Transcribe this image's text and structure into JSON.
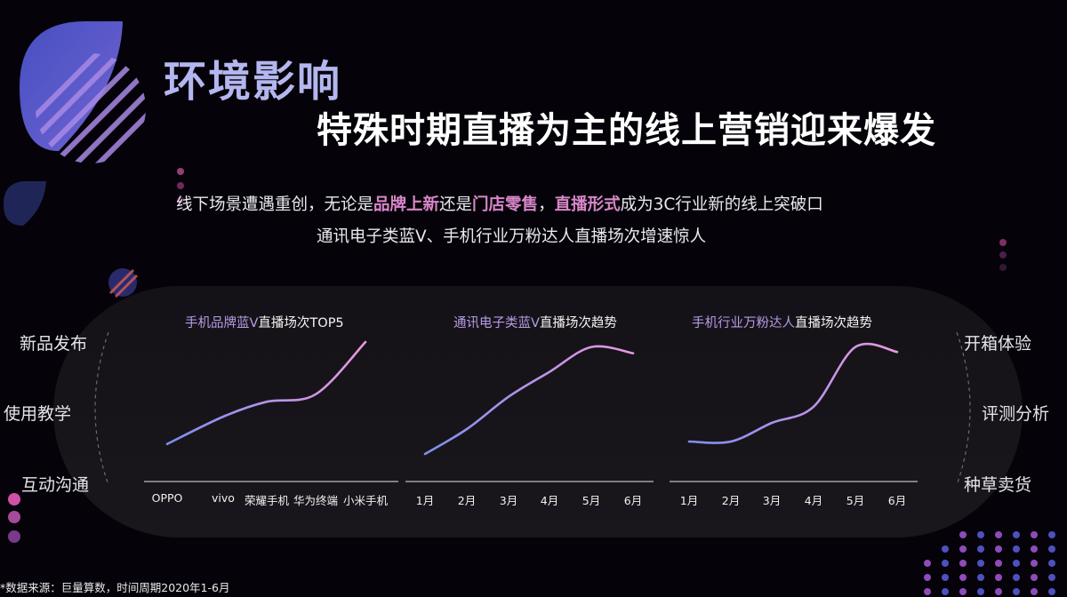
{
  "header": {
    "title": "环境影响",
    "subtitle": "特殊时期直播为主的线上营销迎来爆发"
  },
  "intro": {
    "line1_parts": [
      {
        "text": "线下场景遭遇重创，无论是",
        "highlight": false
      },
      {
        "text": "品牌上新",
        "highlight": true
      },
      {
        "text": "还是",
        "highlight": false
      },
      {
        "text": "门店零售",
        "highlight": true
      },
      {
        "text": "，",
        "highlight": false
      },
      {
        "text": "直播形式",
        "highlight": true
      },
      {
        "text": "成为3C行业新的线上突破口",
        "highlight": false
      }
    ],
    "line2": "通讯电子类蓝V、手机行业万粉达人直播场次增速惊人"
  },
  "left_labels": [
    "新品发布",
    "使用教学",
    "互动沟通"
  ],
  "right_labels": [
    "开箱体验",
    "评测分析",
    "种草卖货"
  ],
  "source": "*数据来源：巨量算数，时间周期2020年1-6月",
  "colors": {
    "title": "#b4b6ef",
    "highlight": "#d886c8",
    "line_start": "#7d8ef0",
    "line_end": "#ea98e2",
    "background": "#050309",
    "panel": "#17151a"
  },
  "chart_data": [
    {
      "type": "line",
      "title_prefix": "手机品牌蓝V",
      "title_suffix": "直播场次TOP5",
      "categories": [
        "OPPO",
        "vivo",
        "荣耀手机",
        "华为终端",
        "小米手机"
      ],
      "values": [
        18,
        40,
        52,
        58,
        100
      ],
      "ylim": [
        0,
        100
      ],
      "smooth": true
    },
    {
      "type": "line",
      "title_prefix": "通讯电子类蓝V",
      "title_suffix": "直播场次趋势",
      "categories": [
        "1月",
        "2月",
        "3月",
        "4月",
        "5月",
        "6月"
      ],
      "values": [
        10,
        30,
        56,
        76,
        96,
        91
      ],
      "ylim": [
        0,
        100
      ],
      "smooth": true
    },
    {
      "type": "line",
      "title_prefix": "手机行业万粉达人",
      "title_suffix": "直播场次趋势",
      "categories": [
        "1月",
        "2月",
        "3月",
        "4月",
        "5月",
        "6月"
      ],
      "values": [
        20,
        20,
        35,
        48,
        96,
        92
      ],
      "ylim": [
        0,
        100
      ],
      "smooth": true
    }
  ]
}
